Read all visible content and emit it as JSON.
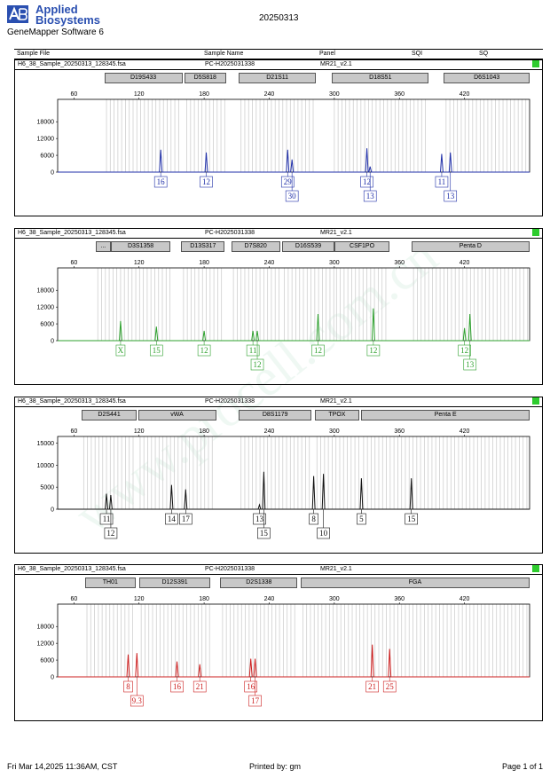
{
  "header": {
    "brand_line1": "Applied",
    "brand_line2": "Biosystems",
    "software": "GeneMapper Software 6",
    "date": "20250313"
  },
  "columns": {
    "sample_file": "Sample File",
    "sample_name": "Sample Name",
    "panel": "Panel",
    "sqi": "SQI",
    "sq": "SQ"
  },
  "footer": {
    "printed_at": "Fri Mar 14,2025 11:36AM, CST",
    "printed_by": "Printed by: gm",
    "page": "Page 1 of 1"
  },
  "watermark": "www.procell.com.cn",
  "chart_data": [
    {
      "type": "line",
      "file": "H6_38_Sample_20250313_128345.fsa",
      "sample": "PC-H2025031338",
      "panel": "MR21_v2.1",
      "color": "#1f2fa8",
      "xlim": [
        45,
        480
      ],
      "ylim": [
        0,
        26000
      ],
      "xticks": [
        60,
        120,
        180,
        240,
        300,
        360,
        420
      ],
      "yticks": [
        0,
        6000,
        12000,
        18000
      ],
      "markers": [
        {
          "label": "D19S433",
          "from": 88,
          "to": 160
        },
        {
          "label": "D5S818",
          "from": 162,
          "to": 200
        },
        {
          "label": "D21S11",
          "from": 212,
          "to": 283
        },
        {
          "label": "D18S51",
          "from": 298,
          "to": 387
        },
        {
          "label": "D6S1043",
          "from": 401,
          "to": 480
        }
      ],
      "peaks": [
        [
          140,
          8000
        ],
        [
          182,
          7000
        ],
        [
          257,
          8000
        ],
        [
          261,
          4500
        ],
        [
          330,
          8500
        ],
        [
          333,
          2000
        ],
        [
          399,
          6500
        ],
        [
          407,
          7000
        ]
      ],
      "calls": [
        {
          "x": 140,
          "label": "16",
          "row": 1
        },
        {
          "x": 182,
          "label": "12",
          "row": 1
        },
        {
          "x": 257,
          "label": "29",
          "row": 1
        },
        {
          "x": 261,
          "label": "30",
          "row": 2
        },
        {
          "x": 330,
          "label": "12",
          "row": 1
        },
        {
          "x": 333,
          "label": "13",
          "row": 2
        },
        {
          "x": 399,
          "label": "11",
          "row": 1
        },
        {
          "x": 407,
          "label": "13",
          "row": 2
        }
      ]
    },
    {
      "type": "line",
      "file": "H6_38_Sample_20250313_128345.fsa",
      "sample": "PC-H2025031338",
      "panel": "MR21_v2.1",
      "color": "#2ea12e",
      "xlim": [
        45,
        480
      ],
      "ylim": [
        0,
        26000
      ],
      "xticks": [
        60,
        120,
        180,
        240,
        300,
        360,
        420
      ],
      "yticks": [
        0,
        6000,
        12000,
        18000
      ],
      "markers": [
        {
          "label": "...",
          "from": 80,
          "to": 94
        },
        {
          "label": "D3S1358",
          "from": 94,
          "to": 149
        },
        {
          "label": "D13S317",
          "from": 159,
          "to": 199
        },
        {
          "label": "D7S820",
          "from": 205,
          "to": 250
        },
        {
          "label": "D16S539",
          "from": 252,
          "to": 300
        },
        {
          "label": "CSF1PO",
          "from": 300,
          "to": 351
        },
        {
          "label": "Penta D",
          "from": 371,
          "to": 480
        }
      ],
      "peaks": [
        [
          103,
          7000
        ],
        [
          136,
          5000
        ],
        [
          180,
          3500
        ],
        [
          225,
          3500
        ],
        [
          229,
          3500
        ],
        [
          285,
          9500
        ],
        [
          336,
          11500
        ],
        [
          420,
          4500
        ],
        [
          425,
          9500
        ]
      ],
      "calls": [
        {
          "x": 103,
          "label": "X",
          "row": 1
        },
        {
          "x": 136,
          "label": "15",
          "row": 1
        },
        {
          "x": 180,
          "label": "12",
          "row": 1
        },
        {
          "x": 225,
          "label": "11",
          "row": 1
        },
        {
          "x": 229,
          "label": "12",
          "row": 2
        },
        {
          "x": 285,
          "label": "12",
          "row": 1
        },
        {
          "x": 336,
          "label": "12",
          "row": 1
        },
        {
          "x": 420,
          "label": "12",
          "row": 1
        },
        {
          "x": 425,
          "label": "13",
          "row": 2
        }
      ]
    },
    {
      "type": "line",
      "file": "H6_38_Sample_20250313_128345.fsa",
      "sample": "PC-H2025031338",
      "panel": "MR21_v2.1",
      "color": "#111111",
      "xlim": [
        45,
        480
      ],
      "ylim": [
        0,
        16500
      ],
      "xticks": [
        60,
        120,
        180,
        240,
        300,
        360,
        420
      ],
      "yticks": [
        0,
        5000,
        10000,
        15000
      ],
      "markers": [
        {
          "label": "D2S441",
          "from": 67,
          "to": 118
        },
        {
          "label": "vWA",
          "from": 119,
          "to": 191
        },
        {
          "label": "D8S1179",
          "from": 212,
          "to": 279
        },
        {
          "label": "TPOX",
          "from": 282,
          "to": 323
        },
        {
          "label": "Penta E",
          "from": 325,
          "to": 480
        }
      ],
      "peaks": [
        [
          90,
          3500
        ],
        [
          94,
          3200
        ],
        [
          150,
          5500
        ],
        [
          163,
          4500
        ],
        [
          231,
          1000
        ],
        [
          235,
          8500
        ],
        [
          281,
          7500
        ],
        [
          290,
          8000
        ],
        [
          325,
          7000
        ],
        [
          371,
          7000
        ]
      ],
      "calls": [
        {
          "x": 90,
          "label": "11",
          "row": 1
        },
        {
          "x": 94,
          "label": "12",
          "row": 2
        },
        {
          "x": 150,
          "label": "14",
          "row": 1
        },
        {
          "x": 163,
          "label": "17",
          "row": 1
        },
        {
          "x": 231,
          "label": "13",
          "row": 1
        },
        {
          "x": 235,
          "label": "15",
          "row": 2
        },
        {
          "x": 281,
          "label": "8",
          "row": 1
        },
        {
          "x": 290,
          "label": "10",
          "row": 2
        },
        {
          "x": 325,
          "label": "5",
          "row": 1
        },
        {
          "x": 371,
          "label": "15",
          "row": 1
        }
      ]
    },
    {
      "type": "line",
      "file": "H6_38_Sample_20250313_128345.fsa",
      "sample": "PC-H2025031338",
      "panel": "MR21_v2.1",
      "color": "#cc1f1f",
      "xlim": [
        45,
        480
      ],
      "ylim": [
        0,
        26000
      ],
      "xticks": [
        60,
        120,
        180,
        240,
        300,
        360,
        420
      ],
      "yticks": [
        0,
        6000,
        12000,
        18000
      ],
      "markers": [
        {
          "label": "TH01",
          "from": 70,
          "to": 117
        },
        {
          "label": "D12S391",
          "from": 120,
          "to": 186
        },
        {
          "label": "D2S1338",
          "from": 195,
          "to": 266
        },
        {
          "label": "FGA",
          "from": 269,
          "to": 480
        }
      ],
      "peaks": [
        [
          110,
          8000
        ],
        [
          118,
          8500
        ],
        [
          155,
          5500
        ],
        [
          176,
          4500
        ],
        [
          223,
          6500
        ],
        [
          227,
          6500
        ],
        [
          335,
          11500
        ],
        [
          351,
          10000
        ]
      ],
      "calls": [
        {
          "x": 110,
          "label": "8",
          "row": 1
        },
        {
          "x": 118,
          "label": "9.3",
          "row": 2
        },
        {
          "x": 155,
          "label": "16",
          "row": 1
        },
        {
          "x": 176,
          "label": "21",
          "row": 1
        },
        {
          "x": 223,
          "label": "16",
          "row": 1
        },
        {
          "x": 227,
          "label": "17",
          "row": 2
        },
        {
          "x": 335,
          "label": "21",
          "row": 1
        },
        {
          "x": 351,
          "label": "25",
          "row": 1
        }
      ]
    }
  ]
}
